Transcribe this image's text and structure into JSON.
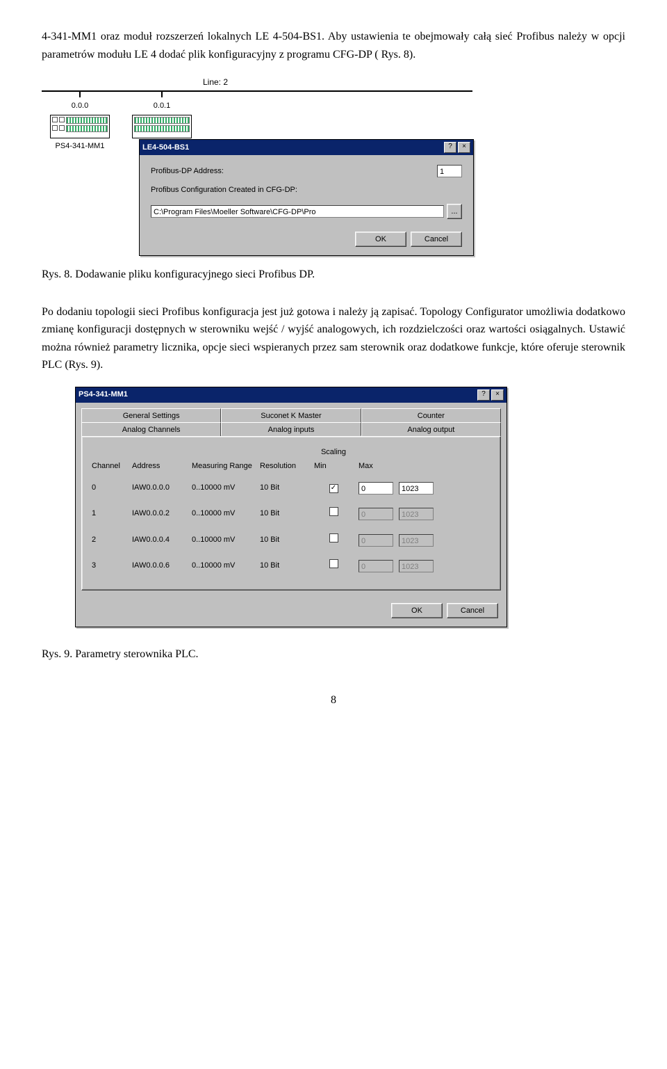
{
  "paragraph_top": "4-341-MM1 oraz moduł rozszerzeń lokalnych LE 4-504-BS1. Aby ustawienia te obejmowały całą sieć Profibus należy w opcji parametrów modułu LE 4 dodać plik konfiguracyjny z programu CFG-DP ( Rys. 8).",
  "topology": {
    "line_label": "Line: 2",
    "nodes": [
      {
        "addr": "0.0.0",
        "name": "PS4-341-MM1"
      },
      {
        "addr": "0.0.1",
        "name": "LE4-504-BS1"
      }
    ]
  },
  "dialog1": {
    "title": "LE4-504-BS1",
    "help_btn": "?",
    "close_btn": "×",
    "fields": {
      "addr_label": "Profibus-DP Address:",
      "addr_value": "1",
      "cfg_label": "Profibus Configuration Created in CFG-DP:",
      "cfg_value": "C:\\Program Files\\Moeller Software\\CFG-DP\\Pro",
      "browse_btn": "..."
    },
    "ok_btn": "OK",
    "cancel_btn": "Cancel"
  },
  "caption1": "Rys. 8. Dodawanie pliku konfiguracyjnego sieci Profibus DP.",
  "paragraph_mid": "Po dodaniu topologii sieci Profibus konfiguracja jest już gotowa i należy ją zapisać. Topology Configurator umożliwia dodatkowo zmianę konfiguracji dostępnych w sterowniku wejść / wyjść analogowych, ich rozdzielczości oraz wartości osiągalnych. Ustawić można również parametry licznika, opcje sieci wspieranych przez sam sterownik oraz dodatkowe funkcje, które oferuje sterownik PLC (Rys. 9).",
  "dialog2": {
    "title": "PS4-341-MM1",
    "help_btn": "?",
    "close_btn": "×",
    "tabs_row1": [
      "General Settings",
      "Suconet K Master",
      "Counter"
    ],
    "tabs_row2": [
      "Analog Channels",
      "Analog inputs",
      "Analog output"
    ],
    "active_tab": "Analog inputs",
    "headers": {
      "channel": "Channel",
      "address": "Address",
      "range": "Measuring Range",
      "resolution": "Resolution",
      "scaling": "Scaling",
      "min": "Min",
      "max": "Max"
    },
    "rows": [
      {
        "ch": "0",
        "addr": "IAW0.0.0.0",
        "range": "0..10000 mV",
        "res": "10 Bit",
        "scale_on": true,
        "min": "0",
        "max": "1023"
      },
      {
        "ch": "1",
        "addr": "IAW0.0.0.2",
        "range": "0..10000 mV",
        "res": "10 Bit",
        "scale_on": false,
        "min": "0",
        "max": "1023"
      },
      {
        "ch": "2",
        "addr": "IAW0.0.0.4",
        "range": "0..10000 mV",
        "res": "10 Bit",
        "scale_on": false,
        "min": "0",
        "max": "1023"
      },
      {
        "ch": "3",
        "addr": "IAW0.0.0.6",
        "range": "0..10000 mV",
        "res": "10 Bit",
        "scale_on": false,
        "min": "0",
        "max": "1023"
      }
    ],
    "ok_btn": "OK",
    "cancel_btn": "Cancel"
  },
  "caption2": "Rys. 9. Parametry sterownika PLC.",
  "page_number": "8"
}
